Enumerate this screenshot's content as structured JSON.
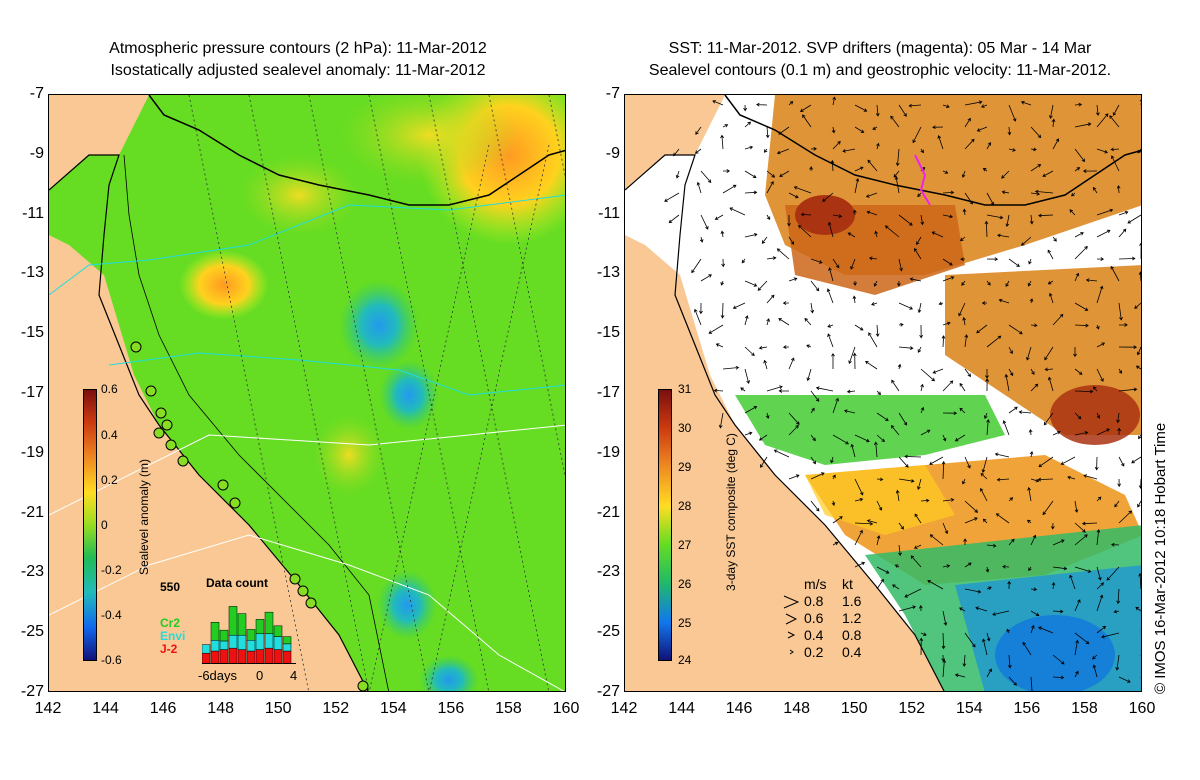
{
  "left_panel": {
    "title_line1": "Atmospheric pressure contours (2 hPa): 11-Mar-2012",
    "title_line2": "Isostatically adjusted sealevel anomaly: 11-Mar-2012",
    "colorbar": {
      "label": "Sealevel anomaly (m)",
      "ticks": [
        "0.6",
        "0.4",
        "0.2",
        "0",
        "-0.2",
        "-0.4",
        "-0.6"
      ],
      "range": [
        -0.6,
        0.6
      ]
    },
    "data_count": {
      "title": "Data count",
      "max_label": "550",
      "missions": [
        {
          "name": "Cr2",
          "color": "#22cc22"
        },
        {
          "name": "Envi",
          "color": "#22dddd"
        },
        {
          "name": "J-2",
          "color": "#ee1111"
        }
      ],
      "axis_labels": [
        "-6days",
        "0",
        "4"
      ],
      "bars": [
        {
          "day": -6,
          "J-2": 0.15,
          "Envi": 0.12,
          "Cr2": 0.0
        },
        {
          "day": -5,
          "J-2": 0.18,
          "Envi": 0.15,
          "Cr2": 0.25
        },
        {
          "day": -4,
          "J-2": 0.2,
          "Envi": 0.12,
          "Cr2": 0.15
        },
        {
          "day": -3,
          "J-2": 0.22,
          "Envi": 0.18,
          "Cr2": 0.4
        },
        {
          "day": -2,
          "J-2": 0.2,
          "Envi": 0.2,
          "Cr2": 0.3
        },
        {
          "day": -1,
          "J-2": 0.18,
          "Envi": 0.15,
          "Cr2": 0.15
        },
        {
          "day": 0,
          "J-2": 0.2,
          "Envi": 0.22,
          "Cr2": 0.2
        },
        {
          "day": 1,
          "J-2": 0.22,
          "Envi": 0.2,
          "Cr2": 0.3
        },
        {
          "day": 2,
          "J-2": 0.2,
          "Envi": 0.18,
          "Cr2": 0.15
        },
        {
          "day": 3,
          "J-2": 0.18,
          "Envi": 0.1,
          "Cr2": 0.1
        }
      ]
    }
  },
  "right_panel": {
    "title_line1": "SST: 11-Mar-2012. SVP drifters (magenta): 05 Mar - 14 Mar",
    "title_line2": "Sealevel contours (0.1 m) and geostrophic velocity: 11-Mar-2012.",
    "colorbar": {
      "label": "3-day SST composite (deg C)",
      "ticks": [
        "31",
        "30",
        "29",
        "28",
        "27",
        "26",
        "25",
        "24"
      ],
      "range": [
        24,
        31
      ]
    },
    "velocity_legend": {
      "header_ms": "m/s",
      "header_kt": "kt",
      "rows": [
        {
          "ms": "0.8",
          "kt": "1.6"
        },
        {
          "ms": "0.6",
          "kt": "1.2"
        },
        {
          "ms": "0.4",
          "kt": "0.8"
        },
        {
          "ms": "0.2",
          "kt": "0.4"
        }
      ]
    }
  },
  "axes": {
    "y_ticks": [
      "-7",
      "-9",
      "-11",
      "-13",
      "-15",
      "-17",
      "-19",
      "-21",
      "-23",
      "-25",
      "-27"
    ],
    "x_ticks": [
      "142",
      "144",
      "146",
      "148",
      "150",
      "152",
      "154",
      "156",
      "158",
      "160"
    ],
    "lat_range": [
      -27,
      -7
    ],
    "lon_range": [
      142,
      160
    ]
  },
  "credit": "© IMOS 16-Mar-2012 10:18 Hobart Time",
  "colors": {
    "land": "#f9c894",
    "ocean_green": "#55dd22",
    "sst_orange": "#dd8822",
    "sst_white": "#ffffff"
  }
}
